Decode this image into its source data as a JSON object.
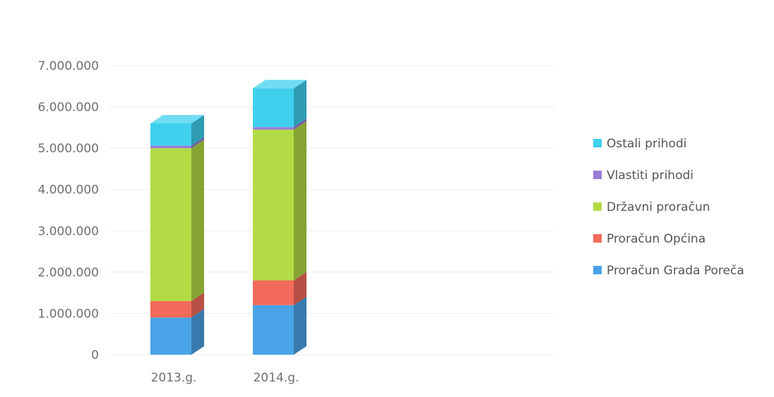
{
  "chart_data": {
    "type": "bar",
    "stacked": true,
    "three_d": true,
    "categories": [
      "2013.g.",
      "2014.g."
    ],
    "series": [
      {
        "name": "Proračun Grada Poreča",
        "color": "#4aa3e6",
        "values": [
          900000,
          1200000
        ]
      },
      {
        "name": "Proračun Općina",
        "color": "#f26a5a",
        "values": [
          400000,
          600000
        ]
      },
      {
        "name": "Državni proračun",
        "color": "#b2db45",
        "values": [
          3700000,
          3650000
        ]
      },
      {
        "name": "Vlastiti prihodi",
        "color": "#9c7ad8",
        "values": [
          60000,
          60000
        ]
      },
      {
        "name": "Ostali prihodi",
        "color": "#3fd0ee",
        "values": [
          540000,
          940000
        ]
      }
    ],
    "ylim": [
      0,
      7000000
    ],
    "y_ticks": [
      "0",
      "1.000.000",
      "2.000.000",
      "3.000.000",
      "4.000.000",
      "5.000.000",
      "6.000.000",
      "7.000.000"
    ],
    "grid": true,
    "legend_position": "right",
    "title": "",
    "xlabel": "",
    "ylabel": ""
  }
}
